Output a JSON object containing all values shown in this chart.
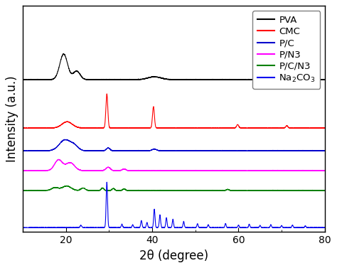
{
  "xlabel": "2θ (degree)",
  "ylabel": "Intensity (a.u.)",
  "xlim": [
    10,
    80
  ],
  "series_colors": [
    "black",
    "red",
    "#0000cc",
    "magenta",
    "green",
    "#0000ee"
  ],
  "series_offsets": [
    5.2,
    3.5,
    2.7,
    2.0,
    1.3,
    0.0
  ],
  "legend_labels_display": [
    "PVA",
    "CMC",
    "P/C",
    "P/N3",
    "P/C/N3",
    "Na$_2$CO$_3$"
  ],
  "background_color": "#ffffff",
  "tick_fontsize": 10,
  "label_fontsize": 12,
  "legend_fontsize": 9.5
}
